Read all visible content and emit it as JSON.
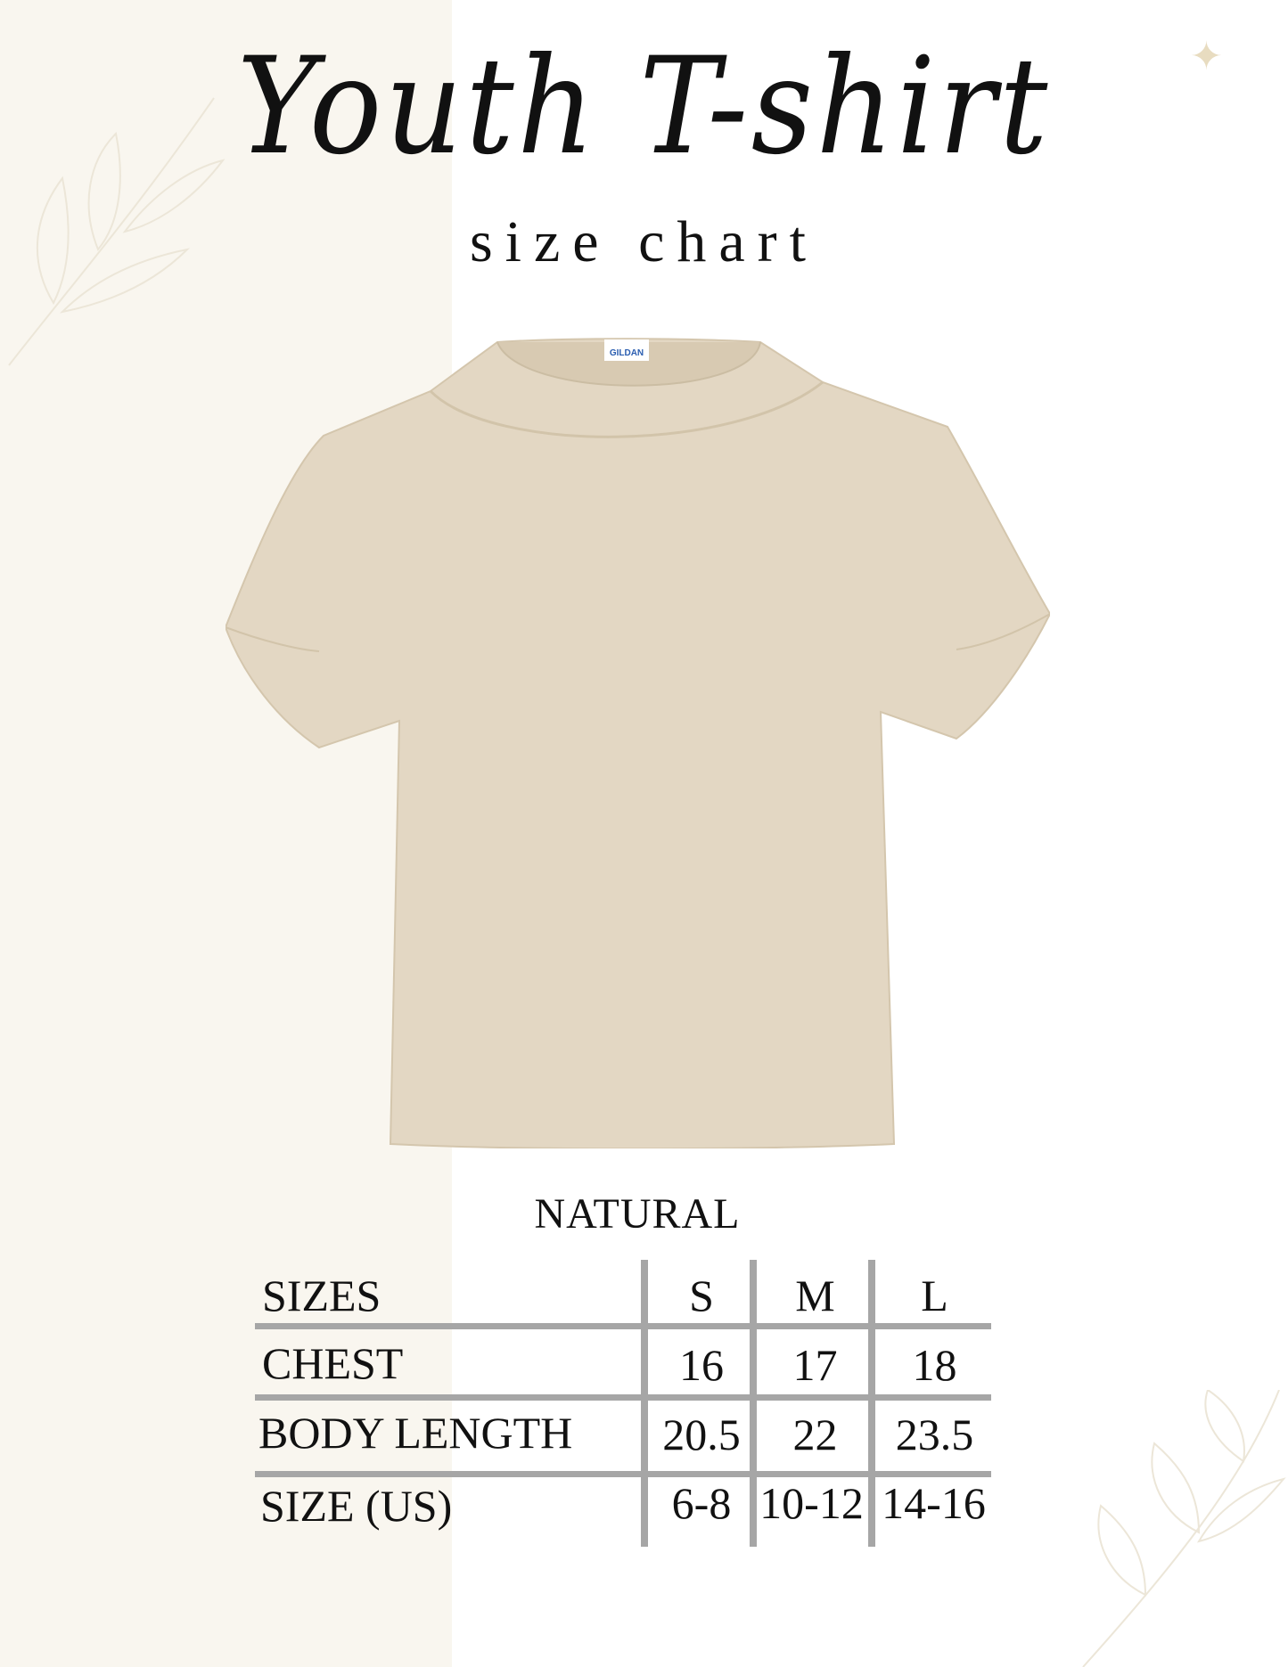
{
  "header": {
    "title": "Youth T-shirt",
    "subtitle": "size chart"
  },
  "product": {
    "color_name": "NATURAL",
    "shirt_color": "#e3d7c3",
    "label_text": "GILDAN"
  },
  "background": {
    "panel_color": "#f9f6ef",
    "accent_color": "#e8dcc0"
  },
  "table": {
    "columns": [
      "SIZES",
      "S",
      "M",
      "L"
    ],
    "rows": [
      {
        "label": "CHEST",
        "values": [
          "16",
          "17",
          "18"
        ]
      },
      {
        "label": "BODY LENGTH",
        "values": [
          "20.5",
          "22",
          "23.5"
        ]
      },
      {
        "label": "SIZE (US)",
        "values": [
          "6-8",
          "10-12",
          "14-16"
        ]
      }
    ]
  }
}
